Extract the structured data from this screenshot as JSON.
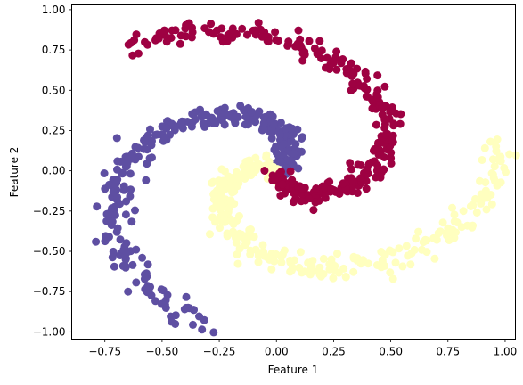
{
  "chart_data": {
    "type": "scatter",
    "xlabel": "Feature 1",
    "ylabel": "Feature 2",
    "xlim": [
      -0.895,
      1.045
    ],
    "ylim": [
      -1.045,
      1.03
    ],
    "xticks": [
      -0.75,
      -0.5,
      -0.25,
      0.0,
      0.25,
      0.5,
      0.75,
      1.0
    ],
    "xtick_labels": [
      "−0.75",
      "−0.50",
      "−0.25",
      "0.00",
      "0.25",
      "0.50",
      "0.75",
      "1.00"
    ],
    "yticks": [
      -1.0,
      -0.75,
      -0.5,
      -0.25,
      0.0,
      0.25,
      0.5,
      0.75,
      1.0
    ],
    "ytick_labels": [
      "−1.00",
      "−0.75",
      "−0.50",
      "−0.25",
      "0.00",
      "0.25",
      "0.50",
      "0.75",
      "1.00"
    ],
    "grid": false,
    "series": [
      {
        "color": "#5e4fa2",
        "spiral": {
          "r_start": 0.03,
          "r_end": 1.0,
          "t_start": 0.7,
          "t_end": 4.4,
          "jitter": 0.035
        },
        "points_count": 300
      },
      {
        "color": "#ffffbf",
        "spiral": {
          "r_start": 0.03,
          "r_end": 1.0,
          "t_start": 2.75,
          "t_end": 6.45,
          "jitter": 0.035
        },
        "points_count": 300
      },
      {
        "color": "#9e0142",
        "spiral": {
          "r_start": 0.03,
          "r_end": 1.0,
          "t_start": 4.85,
          "t_end": 8.55,
          "jitter": 0.035
        },
        "points_count": 300
      }
    ]
  }
}
